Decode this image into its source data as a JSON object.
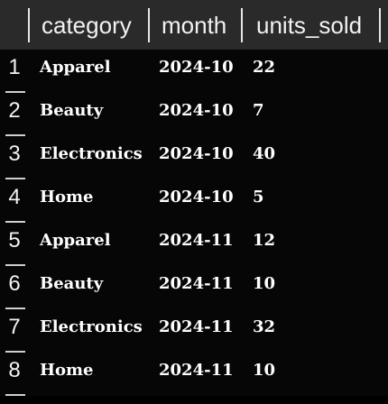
{
  "table": {
    "columns": [
      "category",
      "month",
      "units_sold"
    ],
    "rows": [
      {
        "num": "1",
        "category": "Apparel",
        "month": "2024-10",
        "units_sold": "22"
      },
      {
        "num": "2",
        "category": "Beauty",
        "month": "2024-10",
        "units_sold": "7"
      },
      {
        "num": "3",
        "category": "Electronics",
        "month": "2024-10",
        "units_sold": "40"
      },
      {
        "num": "4",
        "category": "Home",
        "month": "2024-10",
        "units_sold": "5"
      },
      {
        "num": "5",
        "category": "Apparel",
        "month": "2024-11",
        "units_sold": "12"
      },
      {
        "num": "6",
        "category": "Beauty",
        "month": "2024-11",
        "units_sold": "10"
      },
      {
        "num": "7",
        "category": "Electronics",
        "month": "2024-11",
        "units_sold": "32"
      },
      {
        "num": "8",
        "category": "Home",
        "month": "2024-11",
        "units_sold": "10"
      }
    ]
  },
  "colors": {
    "background": "#000000",
    "header_background": "#2a2a2a",
    "text": "#ffffff"
  }
}
